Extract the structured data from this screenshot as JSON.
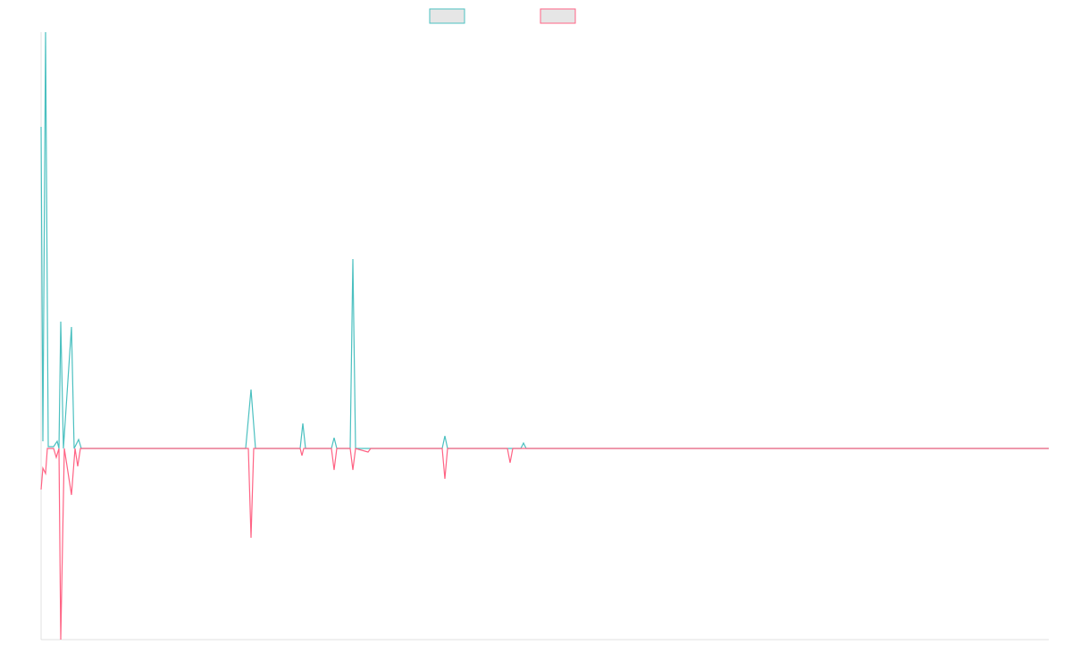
{
  "chart_data": {
    "type": "line",
    "xlim": [
      0,
      1128
    ],
    "ylim": [
      -214,
      466
    ],
    "series": [
      {
        "color": "#4bc0c0",
        "x": [
          0,
          2,
          5,
          8,
          14,
          18,
          20,
          22,
          25,
          34,
          37,
          42,
          45,
          58,
          229,
          235,
          240,
          290,
          293,
          296,
          325,
          328,
          331,
          346,
          349,
          352,
          449,
          452,
          455,
          537,
          540,
          543,
          1128
        ],
        "values": [
          360,
          8,
          466,
          2,
          2,
          8,
          0,
          142,
          0,
          136,
          0,
          10,
          0,
          0,
          0,
          66,
          0,
          0,
          28,
          0,
          0,
          12,
          0,
          0,
          212,
          0,
          0,
          14,
          0,
          0,
          6,
          0,
          0
        ]
      },
      {
        "color": "#ff6384",
        "x": [
          0,
          2,
          5,
          7,
          14,
          17,
          20,
          22,
          26,
          34,
          38,
          41,
          44,
          58,
          232,
          235,
          238,
          290,
          292,
          294,
          325,
          328,
          331,
          346,
          349,
          352,
          366,
          369,
          449,
          452,
          455,
          522,
          525,
          528,
          1128
        ],
        "values": [
          -46,
          -22,
          -28,
          0,
          0,
          -10,
          0,
          -214,
          0,
          -52,
          0,
          -20,
          0,
          0,
          0,
          -100,
          0,
          0,
          -8,
          0,
          0,
          -24,
          0,
          0,
          -24,
          0,
          -4,
          0,
          0,
          -34,
          0,
          0,
          -16,
          0,
          0
        ]
      }
    ]
  }
}
